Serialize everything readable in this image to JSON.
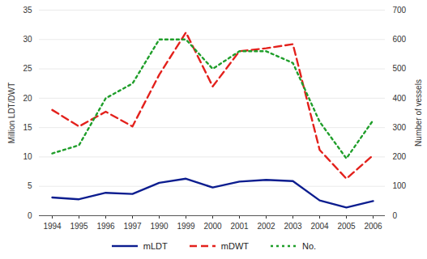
{
  "chart_data": {
    "type": "line",
    "categories": [
      "1994",
      "1995",
      "1996",
      "1997",
      "1990",
      "1999",
      "2000",
      "2001",
      "2002",
      "2003",
      "2004",
      "2005",
      "2006"
    ],
    "ylabel": "Million LDT/DWT",
    "y2label": "Number of vessels",
    "ylim": [
      0,
      35
    ],
    "yticks": [
      0,
      5,
      10,
      15,
      20,
      25,
      30,
      35
    ],
    "y2lim": [
      0,
      700
    ],
    "y2ticks": [
      0,
      100,
      200,
      300,
      400,
      500,
      600,
      700
    ],
    "grid": true,
    "legend": "bottom",
    "series": [
      {
        "name": "mLDT",
        "color": "#0c1d8f",
        "line_style": "solid",
        "values": [
          3.1,
          2.8,
          3.9,
          3.7,
          5.6,
          6.3,
          4.8,
          5.8,
          6.1,
          5.9,
          2.6,
          1.4,
          2.5
        ]
      },
      {
        "name": "mDWT",
        "color": "#e3211c",
        "line_style": "dashed",
        "values": [
          18,
          15.2,
          17.7,
          15.2,
          24,
          31.2,
          22,
          28,
          28.5,
          29.2,
          11.2,
          6.3,
          10.3
        ]
      },
      {
        "name": "No.",
        "color": "#1f9e2a",
        "line_style": "dotted",
        "axis": "y2",
        "values": [
          212,
          240,
          400,
          450,
          600,
          600,
          500,
          560,
          560,
          520,
          320,
          195,
          325
        ]
      }
    ]
  }
}
